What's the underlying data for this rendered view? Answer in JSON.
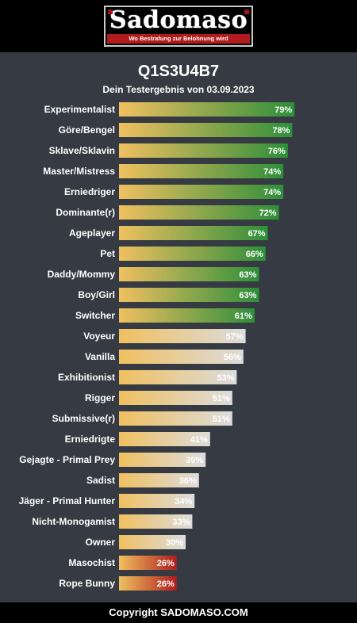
{
  "header": {
    "logo_text": "Sadomaso",
    "logo_tagline": "Wo Bestrafung zur Belohnung wird"
  },
  "title": "Q1S3U4B7",
  "subtitle": "Dein Testergebnis von 03.09.2023",
  "footer": "Copyright SADOMASO.COM",
  "colors": {
    "background": "#363a42",
    "bar_start": "#f0c060",
    "bar_green": "#2e8f3a",
    "bar_grey": "#dcdcdc",
    "bar_red": "#b01c1c"
  },
  "chart_data": {
    "type": "bar",
    "orientation": "horizontal",
    "xlim": [
      0,
      100
    ],
    "categories": [
      "Experimentalist",
      "Göre/Bengel",
      "Sklave/Sklavin",
      "Master/Mistress",
      "Erniedriger",
      "Dominante(r)",
      "Ageplayer",
      "Pet",
      "Daddy/Mommy",
      "Boy/Girl",
      "Switcher",
      "Voyeur",
      "Vanilla",
      "Exhibitionist",
      "Rigger",
      "Submissive(r)",
      "Erniedrigte",
      "Gejagte - Primal Prey",
      "Sadist",
      "Jäger - Primal Hunter",
      "Nicht-Monogamist",
      "Owner",
      "Masochist",
      "Rope Bunny"
    ],
    "values": [
      79,
      78,
      76,
      74,
      74,
      72,
      67,
      66,
      63,
      63,
      61,
      57,
      56,
      53,
      51,
      51,
      41,
      39,
      36,
      34,
      33,
      30,
      26,
      26
    ],
    "labels": [
      "79%",
      "78%",
      "76%",
      "74%",
      "74%",
      "72%",
      "67%",
      "66%",
      "63%",
      "63%",
      "61%",
      "57%",
      "56%",
      "53%",
      "51%",
      "51%",
      "41%",
      "39%",
      "36%",
      "34%",
      "33%",
      "30%",
      "26%",
      "26%"
    ]
  }
}
